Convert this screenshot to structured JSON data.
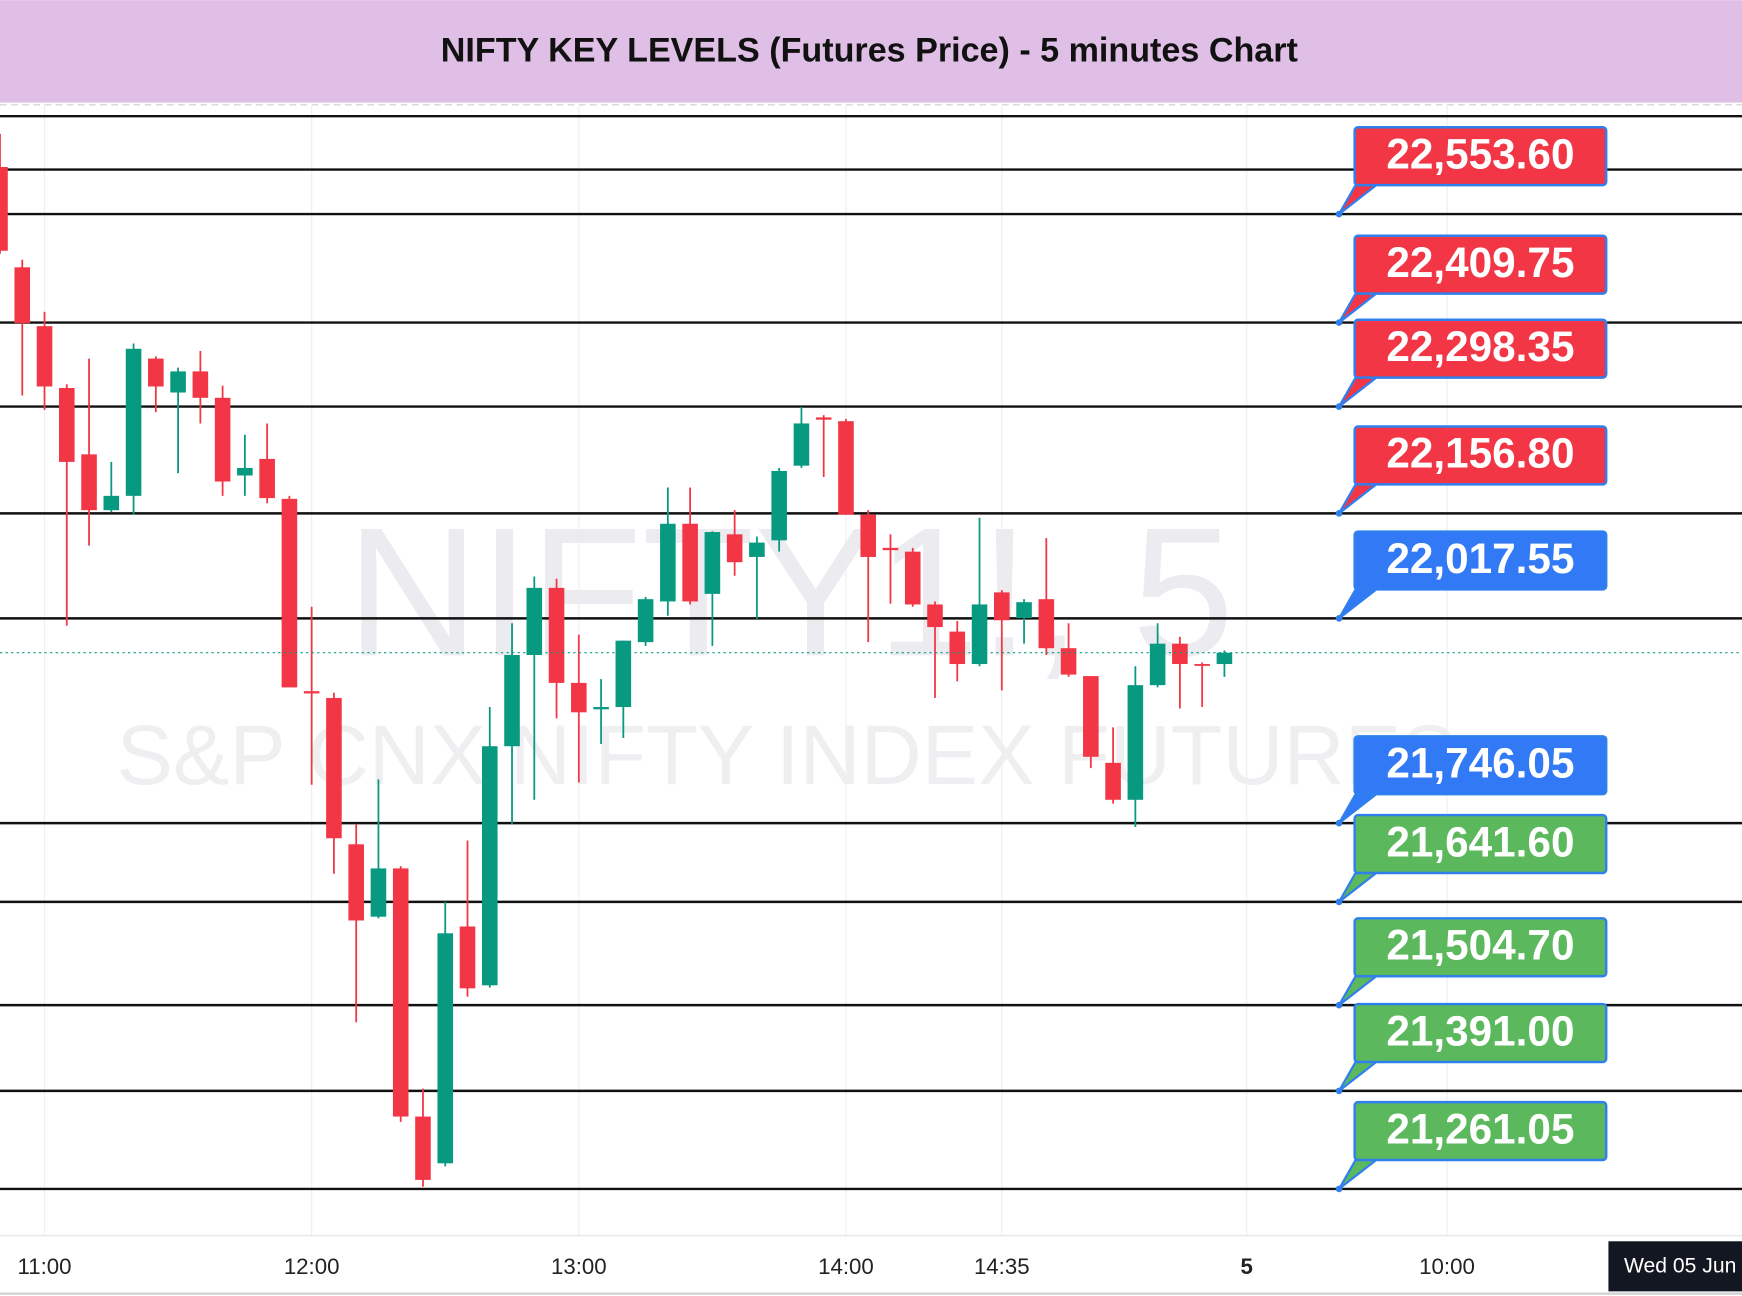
{
  "chart_data": {
    "type": "candlestick",
    "title": "NIFTY KEY LEVELS (Futures Price) - 5 minutes Chart",
    "watermark": "NIFTY1!, 5",
    "watermark_subtitle": "S&P CNX NIFTY INDEX FUTURES",
    "crosshair_label": "Wed 05 Jun",
    "up_color": "#089981",
    "down_color": "#f23645",
    "grid": true,
    "x": [
      -2,
      -1,
      0,
      1,
      2,
      3,
      4,
      5,
      6,
      7,
      8,
      9,
      10,
      11,
      12,
      13,
      14,
      15,
      16,
      17,
      18,
      19,
      20,
      21,
      22,
      23,
      24,
      25,
      26,
      27,
      28,
      29,
      30,
      31,
      32,
      33,
      34,
      35,
      36,
      37,
      38,
      39,
      40,
      41,
      42,
      43,
      44,
      45,
      46,
      47,
      48,
      49,
      50,
      51,
      52,
      53
    ],
    "open": [
      22616,
      22483,
      22405,
      22323,
      22235,
      22161,
      22180,
      22362,
      22317,
      22345,
      22310,
      22207,
      22229,
      22176,
      21921,
      21912,
      21718,
      21622,
      21686,
      21357,
      21295,
      21609,
      21531,
      21848,
      21969,
      22058,
      21932,
      21897,
      21900,
      21986,
      22040,
      22143,
      22050,
      22129,
      22099,
      22121,
      22220,
      22284,
      22279,
      22155,
      22111,
      22106,
      22036,
      22000,
      21957,
      22052,
      22018,
      22043,
      21978,
      21941,
      21826,
      21777,
      21929,
      21984,
      21957,
      21957
    ],
    "high": [
      22660,
      22493,
      22424,
      22328,
      22362,
      22225,
      22382,
      22365,
      22350,
      22372,
      22326,
      22261,
      22276,
      22180,
      22033,
      21919,
      21745,
      21804,
      21689,
      21394,
      21642,
      21723,
      21900,
      22011,
      22073,
      22070,
      21996,
      21937,
      21988,
      22046,
      22191,
      22191,
      22133,
      22161,
      22126,
      22217,
      22298,
      22287,
      22282,
      22161,
      22129,
      22111,
      22040,
      22014,
      22151,
      22055,
      22043,
      22124,
      22011,
      21941,
      21873,
      21954,
      22011,
      21993,
      21959,
      21975
    ],
    "low": [
      22501,
      22313,
      22294,
      22008,
      22114,
      22158,
      22155,
      22291,
      22210,
      22276,
      22180,
      22180,
      22170,
      21926,
      21797,
      21679,
      21482,
      21620,
      21350,
      21264,
      21291,
      21516,
      21528,
      21745,
      21777,
      21885,
      21800,
      21851,
      21859,
      21981,
      22021,
      22036,
      21981,
      22074,
      22017,
      22106,
      22217,
      22205,
      22155,
      21986,
      22037,
      22033,
      21912,
      21934,
      21954,
      21922,
      21984,
      21969,
      21940,
      21819,
      21772,
      21741,
      21926,
      21898,
      21900,
      21940
    ],
    "close": [
      22505,
      22409,
      22325,
      22225,
      22161,
      22180,
      22375,
      22325,
      22345,
      22310,
      22199,
      22217,
      22177,
      21926,
      21918,
      21726,
      21617,
      21686,
      21357,
      21273,
      21600,
      21527,
      21848,
      21969,
      22058,
      21932,
      21893,
      21900,
      21988,
      22043,
      22143,
      22040,
      22132,
      22092,
      22118,
      22213,
      22276,
      22281,
      22155,
      22099,
      22108,
      22036,
      22006,
      21957,
      22036,
      22015,
      22039,
      21978,
      21943,
      21834,
      21777,
      21929,
      21984,
      21957,
      21956,
      21972
    ],
    "xlim": [
      -2,
      76.25
    ],
    "ylim": [
      21199,
      22697
    ],
    "xticks": [
      {
        "value": 0,
        "label": "11:00"
      },
      {
        "value": 12,
        "label": "12:00"
      },
      {
        "value": 24,
        "label": "13:00"
      },
      {
        "value": 36,
        "label": "14:00"
      },
      {
        "value": 43,
        "label": "14:35"
      },
      {
        "value": 54,
        "label": "5"
      },
      {
        "value": 63,
        "label": "10:00"
      }
    ],
    "unlabeled_levels": [
      22683.4,
      22612.6
    ],
    "levels": [
      {
        "value": 22553.6,
        "label": "22,553.60",
        "color": "#f23645"
      },
      {
        "value": 22409.75,
        "label": "22,409.75",
        "color": "#f23645"
      },
      {
        "value": 22298.35,
        "label": "22,298.35",
        "color": "#f23645"
      },
      {
        "value": 22156.8,
        "label": "22,156.80",
        "color": "#f23645"
      },
      {
        "value": 22017.55,
        "label": "22,017.55",
        "color": "#3179f5"
      },
      {
        "value": 21746.05,
        "label": "21,746.05",
        "color": "#3179f5"
      },
      {
        "value": 21641.6,
        "label": "21,641.60",
        "color": "#5cb85c"
      },
      {
        "value": 21504.7,
        "label": "21,504.70",
        "color": "#5cb85c"
      },
      {
        "value": 21391.0,
        "label": "21,391.00",
        "color": "#5cb85c"
      },
      {
        "value": 21261.05,
        "label": "21,261.05",
        "color": "#5cb85c"
      }
    ]
  }
}
